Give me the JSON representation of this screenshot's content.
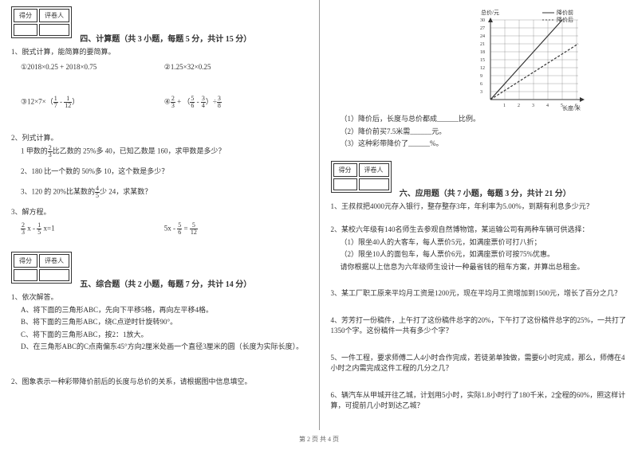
{
  "left": {
    "score_header": [
      "得分",
      "评卷人"
    ],
    "s4_title": "四、计算题（共 3 小题，每题 5 分，共计 15 分）",
    "q1": "1、脱式计算，能简算的要简算。",
    "q1a": "①2018×0.25 + 2018×0.75",
    "q1b": "②1.25×32×0.25",
    "q1c_pre": "③12×7×（",
    "q1c_f1n": "1",
    "q1c_f1d": "7",
    "q1c_mid": " - ",
    "q1c_f2n": "1",
    "q1c_f2d": "12",
    "q1c_post": "）",
    "q1d_pre": "④",
    "q1d_f1n": "2",
    "q1d_f1d": "3",
    "q1d_m1": " + （",
    "q1d_f2n": "5",
    "q1d_f2d": "6",
    "q1d_m2": " - ",
    "q1d_f3n": "3",
    "q1d_f3d": "4",
    "q1d_m3": "）÷",
    "q1d_f4n": "3",
    "q1d_f4d": "8",
    "q2": "2、列式计算。",
    "q2_1a": "1 甲数的",
    "q2_1fn": "2",
    "q2_1fd": "3",
    "q2_1b": "比乙数的 25%多 40，已知乙数是 160，求甲数是多少？",
    "q2_2": "2、180 比一个数的 50%多 10，这个数是多少？",
    "q2_3a": "3、120 的 20%比某数的",
    "q2_3fn": "4",
    "q2_3fd": "5",
    "q2_3b": "少 24，求某数？",
    "q3": "3、解方程。",
    "q3_1_f1n": "2",
    "q3_1_f1d": "3",
    "q3_1_m1": " x - ",
    "q3_1_f2n": "1",
    "q3_1_f2d": "5",
    "q3_1_m2": " x=1",
    "q3_2_pre": "5x - ",
    "q3_2_f1n": "5",
    "q3_2_f1d": "6",
    "q3_2_m": " = ",
    "q3_2_f2n": "5",
    "q3_2_f2d": "12",
    "s5_title": "五、综合题（共 2 小题，每题 7 分，共计 14 分）",
    "s5_q1": "1、依次解答。",
    "s5_q1a": "A、将下面的三角形ABC，先向下平移5格，再向左平移4格。",
    "s5_q1b": "B、将下面的三角形ABC，绕C点逆时针旋转90°。",
    "s5_q1c": "C、将下面的三角形ABC，按2：1放大。",
    "s5_q1d": "D、在三角形ABC的C点南偏东45°方向2厘米处画一个直径3厘米的圆（长度为实际长度）。",
    "s5_q2": "2、图象表示一种彩带降价前后的长度与总价的关系，请根据图中信息填空。"
  },
  "right": {
    "chart": {
      "ylabel": "总价/元",
      "xlabel": "长度/米",
      "legend1": "降价前",
      "legend2": "降价后",
      "yticks": [
        "3",
        "6",
        "9",
        "12",
        "15",
        "18",
        "21",
        "24",
        "27",
        "30"
      ],
      "xticks": [
        "1",
        "2",
        "3",
        "4",
        "5",
        "6"
      ],
      "line1_color": "#333",
      "line2_color": "#333",
      "grid_color": "#666",
      "bg": "#ffffff"
    },
    "chart_q1": "（1）降价后，长度与总价都成______比例。",
    "chart_q2": "（2）降价前买7.5米需______元。",
    "chart_q3": "（3）这种彩带降价了______%。",
    "score_header": [
      "得分",
      "评卷人"
    ],
    "s6_title": "六、应用题（共 7 小题，每题 3 分，共计 21 分）",
    "s6_q1": "1、王叔叔把4000元存入银行，整存整存3年，年利率为5.00%，到期有利息多少元？",
    "s6_q2": "2、某校六年级有140名师生去参观自然博物馆，某运输公司有两种车辆可供选择：",
    "s6_q2a": "（1）限坐40人的大客车，每人票价5元，如满座票价可打八折；",
    "s6_q2b": "（2）限坐10人的面包车，每人票价6元，如满座票价可按75%优惠。",
    "s6_q2c": "请你根据以上信息为六年级师生设计一种最省钱的租车方案，并算出总租金。",
    "s6_q3": "3、某工厂职工原来平均月工资是1200元，现在平均月工资增加到1500元，增长了百分之几？",
    "s6_q4": "4、芳芳打一份稿件，上午打了这份稿件总字的20%，下午打了这份稿件总字的25%，一共打了1350个字。这份稿件一共有多少个字？",
    "s6_q5": "5、一件工程，要求师傅二人4小时合作完成，若徒弟单独做，需要6小时完成，那么，师傅在4小时之内需完成这件工程的几分之几？",
    "s6_q6": "6、辆汽车从甲城开往乙城，计划用5小时，实际1.8小时行了180千米，2全程的60%，照这样计算，可提前几小时到达乙城？"
  },
  "footer": "第 2 页 共 4 页"
}
